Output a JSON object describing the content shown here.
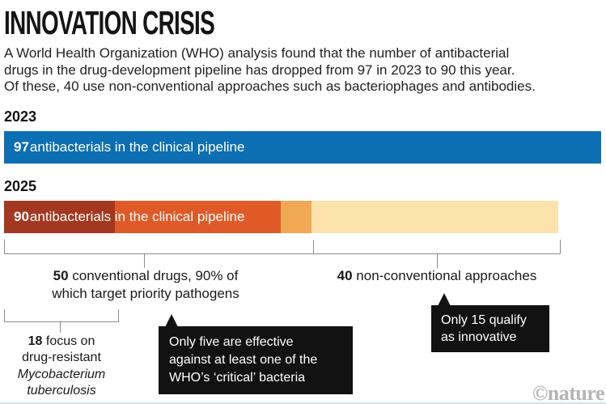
{
  "title": "INNOVATION CRISIS",
  "intro": {
    "line1": "A World Health Organization (WHO) analysis found that the number of antibacterial",
    "line2": "drugs in the drug-development pipeline has dropped from 97 in 2023 to 90 this year.",
    "line3": "Of these, 40 use non-conventional approaches such as bacteriophages and antibodies."
  },
  "chart_data": {
    "type": "bar",
    "orientation": "horizontal",
    "scale_max": 97,
    "bars": [
      {
        "year": "2023",
        "total": 97,
        "label": " antibacterials in the clinical pipeline",
        "segments": [
          {
            "name": "clinical-pipeline-2023",
            "value": 97,
            "color": "#0d6fb3"
          }
        ]
      },
      {
        "year": "2025",
        "total": 90,
        "label": " antibacterials in the clinical pipeline",
        "segments": [
          {
            "name": "conventional-tb-focused",
            "value": 18,
            "color": "#a4371f"
          },
          {
            "name": "conventional-other",
            "value": 27,
            "color": "#e05a28"
          },
          {
            "name": "conventional-effective-critical",
            "value": 5,
            "color": "#f0a855"
          },
          {
            "name": "non-conventional",
            "value": 40,
            "color": "#fce3ab"
          }
        ]
      }
    ],
    "groups": {
      "conventional": {
        "value": "50",
        "rest": " conventional drugs, 90% of",
        "line2": "which target priority pathogens"
      },
      "non_conventional": {
        "value": "40",
        "rest": " non-conventional approaches"
      }
    },
    "sub_annotation": {
      "value": "18",
      "rest": " focus on",
      "line2": "drug-resistant",
      "line3_italic": "Mycobacterium",
      "line4_italic": "tuberculosis"
    },
    "callouts": {
      "five": {
        "lines": [
          "Only five are effective",
          "against at least one of the",
          "WHO’s ‘critical’ bacteria"
        ]
      },
      "innovative": {
        "lines": [
          "Only 15 qualify",
          "as innovative"
        ]
      }
    }
  },
  "watermark": {
    "symbol": "©",
    "brand": "nature"
  },
  "colors": {
    "blue_2023": "#0d6fb3",
    "dark_red": "#a4371f",
    "orange_red": "#e05a28",
    "medium_orange": "#f0a855",
    "cream": "#fce3ab",
    "callout_bg": "#121212",
    "bracket_line": "#8c8c8c",
    "watermark_gray": "#b5b5b5"
  }
}
